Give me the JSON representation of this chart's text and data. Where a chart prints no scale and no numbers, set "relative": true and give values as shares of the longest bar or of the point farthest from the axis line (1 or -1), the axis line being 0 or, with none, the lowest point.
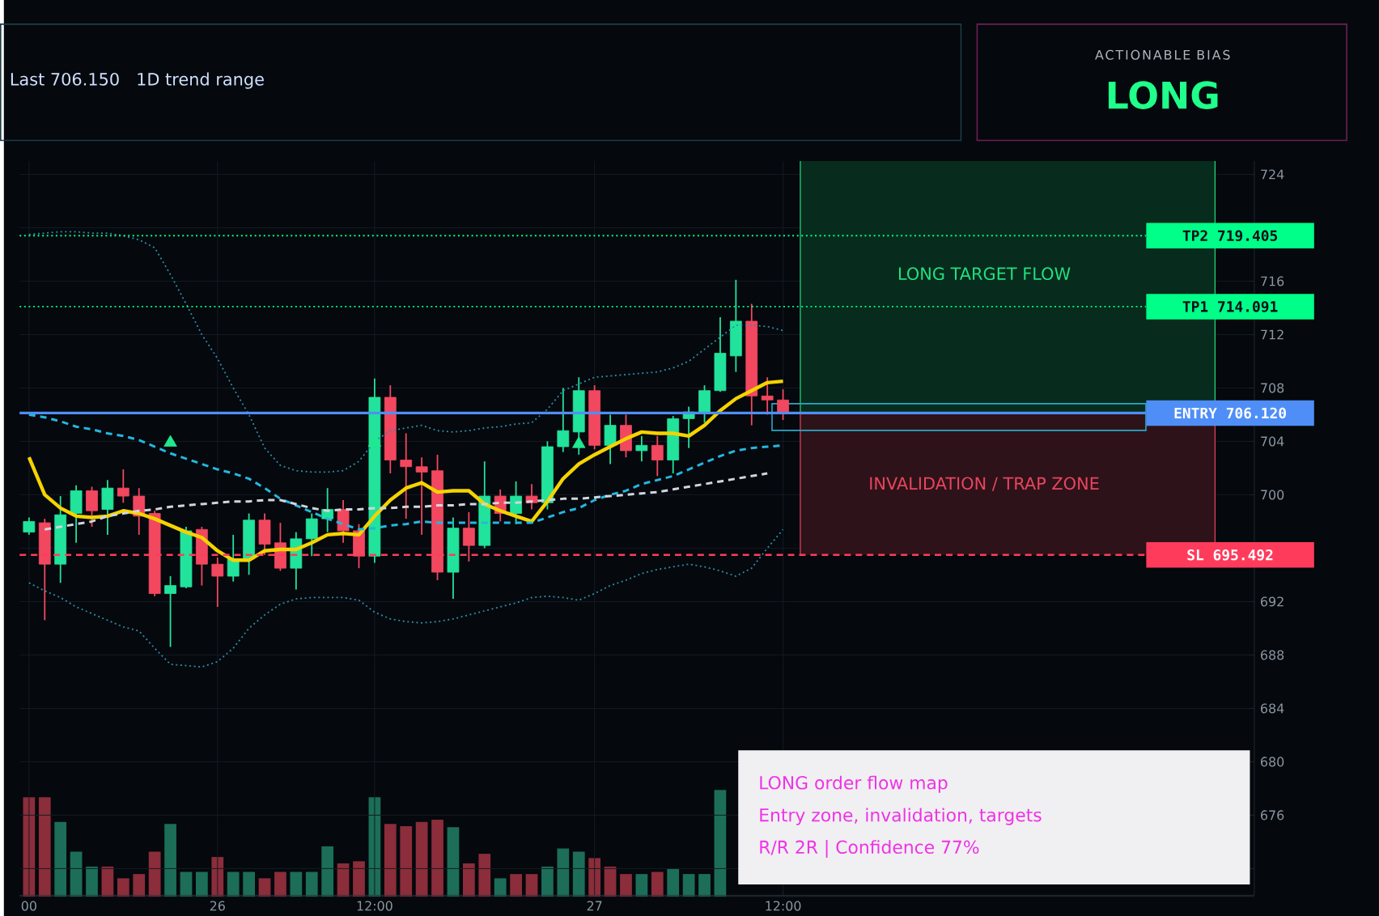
{
  "chart_data": [
    {
      "type": "candlestick",
      "title": "Last 706.150",
      "subtitle": "1D trend range",
      "categories": [
        "00",
        null,
        null,
        null,
        null,
        null,
        null,
        null,
        null,
        null,
        null,
        null,
        "26",
        null,
        null,
        null,
        null,
        null,
        null,
        null,
        null,
        null,
        "12:00",
        null,
        null,
        null,
        null,
        null,
        null,
        null,
        null,
        null,
        null,
        null,
        null,
        null,
        "27",
        null,
        null,
        null,
        null,
        null,
        null,
        null,
        null,
        null,
        null,
        null,
        "12:00"
      ],
      "ohlc": [
        [
          697.2,
          698.3,
          697.0,
          698.0
        ],
        [
          697.9,
          698.2,
          690.6,
          694.8
        ],
        [
          694.8,
          699.9,
          693.4,
          698.5
        ],
        [
          698.6,
          700.7,
          696.4,
          700.3
        ],
        [
          700.3,
          700.6,
          697.6,
          698.8
        ],
        [
          698.9,
          701.1,
          697.0,
          700.5
        ],
        [
          700.5,
          701.9,
          699.4,
          699.9
        ],
        [
          699.9,
          700.5,
          697.0,
          698.4
        ],
        [
          698.6,
          698.8,
          692.4,
          692.6
        ],
        [
          692.6,
          693.9,
          688.6,
          693.2
        ],
        [
          693.1,
          697.6,
          693.0,
          697.3
        ],
        [
          697.4,
          697.6,
          693.2,
          694.8
        ],
        [
          694.8,
          695.3,
          691.6,
          693.9
        ],
        [
          693.9,
          697.0,
          693.5,
          695.2
        ],
        [
          695.2,
          698.6,
          694.0,
          698.1
        ],
        [
          698.1,
          698.6,
          695.5,
          696.3
        ],
        [
          696.4,
          697.9,
          694.3,
          694.5
        ],
        [
          694.5,
          697.2,
          692.9,
          696.7
        ],
        [
          696.7,
          698.6,
          695.4,
          698.2
        ],
        [
          698.2,
          700.5,
          697.2,
          698.9
        ],
        [
          698.9,
          699.6,
          696.4,
          697.3
        ],
        [
          697.3,
          697.8,
          694.5,
          695.4
        ],
        [
          695.4,
          708.7,
          694.9,
          707.3
        ],
        [
          707.3,
          708.2,
          701.6,
          702.6
        ],
        [
          702.6,
          704.6,
          698.2,
          702.1
        ],
        [
          702.1,
          702.8,
          697.0,
          701.7
        ],
        [
          701.8,
          703.0,
          693.6,
          694.2
        ],
        [
          694.2,
          698.3,
          692.2,
          697.5
        ],
        [
          697.5,
          698.7,
          695.0,
          696.2
        ],
        [
          696.2,
          702.5,
          696.0,
          699.9
        ],
        [
          699.9,
          700.4,
          698.0,
          698.6
        ],
        [
          698.6,
          701.0,
          697.8,
          699.9
        ],
        [
          699.9,
          700.8,
          698.9,
          699.4
        ],
        [
          699.4,
          704.0,
          698.9,
          703.6
        ],
        [
          703.6,
          708.0,
          703.2,
          704.8
        ],
        [
          704.7,
          708.8,
          703.0,
          707.8
        ],
        [
          707.8,
          708.2,
          703.4,
          703.7
        ],
        [
          703.7,
          706.0,
          702.3,
          705.2
        ],
        [
          705.2,
          706.0,
          702.8,
          703.3
        ],
        [
          703.3,
          704.4,
          702.5,
          703.7
        ],
        [
          703.7,
          704.4,
          701.4,
          702.6
        ],
        [
          702.6,
          705.9,
          701.6,
          705.7
        ],
        [
          705.7,
          706.6,
          703.5,
          706.2
        ],
        [
          706.2,
          708.2,
          705.4,
          707.8
        ],
        [
          707.8,
          713.3,
          707.7,
          710.6
        ],
        [
          710.4,
          716.1,
          709.2,
          713.0
        ],
        [
          713.0,
          714.3,
          705.2,
          707.4
        ],
        [
          707.4,
          708.8,
          706.0,
          707.1
        ],
        [
          707.1,
          707.9,
          705.6,
          706.2
        ]
      ],
      "colors": [
        "#22e39b",
        "#f2485f",
        "#22e39b",
        "#22e39b",
        "#f2485f",
        "#22e39b",
        "#f2485f",
        "#f2485f",
        "#f2485f",
        "#22e39b",
        "#22e39b",
        "#f2485f",
        "#f2485f",
        "#22e39b",
        "#22e39b",
        "#f2485f",
        "#f2485f",
        "#22e39b",
        "#22e39b",
        "#22e39b",
        "#f2485f",
        "#f2485f",
        "#22e39b",
        "#f2485f",
        "#f2485f",
        "#f2485f",
        "#f2485f",
        "#22e39b",
        "#f2485f",
        "#22e39b",
        "#f2485f",
        "#22e39b",
        "#f2485f",
        "#22e39b",
        "#22e39b",
        "#22e39b",
        "#f2485f",
        "#22e39b",
        "#f2485f",
        "#22e39b",
        "#f2485f",
        "#22e39b",
        "#22e39b",
        "#22e39b",
        "#22e39b",
        "#22e39b",
        "#f2485f",
        "#f2485f",
        "#f2485f"
      ],
      "series": [
        {
          "type": "line",
          "color": "#f5d300",
          "line_style": "solid",
          "values": [
            702.8,
            700.0,
            699.0,
            698.4,
            698.3,
            698.4,
            698.8,
            698.6,
            698.2,
            697.7,
            697.2,
            696.8,
            695.8,
            695.1,
            695.1,
            695.8,
            695.9,
            695.9,
            696.4,
            697.0,
            697.1,
            697.0,
            698.4,
            699.6,
            700.5,
            700.9,
            700.2,
            700.3,
            700.3,
            699.3,
            698.8,
            698.4,
            698.0,
            699.5,
            701.2,
            702.3,
            703.0,
            703.6,
            704.2,
            704.7,
            704.6,
            704.6,
            704.4,
            705.2,
            706.3,
            707.2,
            707.8,
            708.4,
            708.5
          ]
        },
        {
          "type": "line",
          "color": "#22b8e0",
          "line_style": "dashed",
          "values": [
            706.0,
            705.8,
            705.5,
            705.1,
            704.9,
            704.6,
            704.4,
            704.1,
            703.6,
            703.1,
            702.7,
            702.3,
            701.9,
            701.6,
            701.2,
            700.5,
            699.7,
            699.2,
            698.7,
            698.2,
            697.8,
            697.4,
            697.5,
            697.7,
            697.8,
            698.0,
            697.9,
            697.9,
            697.9,
            697.9,
            697.9,
            697.9,
            697.9,
            698.3,
            698.7,
            699.0,
            699.6,
            700.0,
            700.3,
            700.8,
            701.1,
            701.4,
            701.9,
            702.4,
            702.9,
            703.3,
            703.5,
            703.6,
            703.7
          ]
        },
        {
          "type": "line",
          "color": "#cfd6dd",
          "line_style": "dashed",
          "values": [
            null,
            697.4,
            697.6,
            697.8,
            698.0,
            698.4,
            698.6,
            698.8,
            698.9,
            699.1,
            699.2,
            699.3,
            699.4,
            699.5,
            699.5,
            699.6,
            699.6,
            699.3,
            699.0,
            698.8,
            698.9,
            698.9,
            699.0,
            699.0,
            699.1,
            699.1,
            699.2,
            699.2,
            699.3,
            699.3,
            699.4,
            699.4,
            699.5,
            699.6,
            699.7,
            699.7,
            699.8,
            699.9,
            700.0,
            700.1,
            700.2,
            700.4,
            700.6,
            700.8,
            701.0,
            701.2,
            701.4,
            701.6,
            null
          ]
        },
        {
          "type": "line",
          "color": "#2a8fa8",
          "line_style": "dotted",
          "values": [
            719.5,
            719.6,
            719.7,
            719.7,
            719.6,
            719.6,
            719.4,
            719.1,
            718.5,
            716.5,
            714.3,
            712.0,
            710.2,
            708.0,
            706.0,
            703.5,
            702.2,
            701.8,
            701.7,
            701.7,
            701.8,
            702.5,
            704.0,
            704.8,
            705.0,
            705.2,
            704.8,
            704.7,
            704.8,
            705.0,
            705.1,
            705.3,
            705.4,
            706.4,
            707.8,
            708.3,
            708.8,
            708.9,
            709.0,
            709.1,
            709.2,
            709.5,
            710.0,
            710.9,
            711.8,
            712.7,
            712.7,
            712.6,
            712.3
          ]
        },
        {
          "type": "line",
          "color": "#2a8fa8",
          "line_style": "dotted",
          "values": [
            693.4,
            692.8,
            692.3,
            691.6,
            691.1,
            690.6,
            690.1,
            689.8,
            688.5,
            687.3,
            687.2,
            687.1,
            687.5,
            688.5,
            690.0,
            691.0,
            691.8,
            692.2,
            692.3,
            692.3,
            692.3,
            692.1,
            691.2,
            690.7,
            690.5,
            690.4,
            690.5,
            690.7,
            691.0,
            691.3,
            691.6,
            691.9,
            692.3,
            692.4,
            692.3,
            692.1,
            692.6,
            693.2,
            693.6,
            694.1,
            694.4,
            694.6,
            694.8,
            694.6,
            694.3,
            693.9,
            694.5,
            696.0,
            697.4
          ]
        },
        {
          "type": "scatter",
          "color": "#1fe88f",
          "marker": "triangle",
          "values": [
            null,
            null,
            null,
            null,
            null,
            null,
            null,
            null,
            null,
            703.9,
            null,
            null,
            null,
            null,
            null,
            null,
            null,
            null,
            null,
            null,
            null,
            null,
            703.9,
            null,
            null,
            null,
            null,
            null,
            null,
            null,
            null,
            null,
            null,
            null,
            null,
            703.8,
            null,
            null,
            null,
            null,
            null,
            null,
            null,
            null,
            null,
            null,
            null,
            null,
            null
          ]
        }
      ],
      "ylim": [
        670,
        725
      ],
      "yticks": [
        {
          "value": 672,
          "label": null
        },
        676,
        680,
        684,
        688,
        692,
        {
          "value": 696,
          "label": null
        },
        700,
        704,
        708,
        712,
        716,
        {
          "value": 720,
          "label": null
        },
        724
      ],
      "grid": true,
      "ref_lines": [
        {
          "axis": "y",
          "value": 719.405,
          "label": "TP2 719.405",
          "color": "#00ff88",
          "line_style": "dotted"
        },
        {
          "axis": "y",
          "value": 714.091,
          "label": "TP1 714.091",
          "color": "#00ff88",
          "line_style": "dotted"
        },
        {
          "axis": "y",
          "value": 706.12,
          "label": "ENTRY 706.120",
          "color": "#4f8ef7",
          "line_style": "solid"
        },
        {
          "axis": "y",
          "value": 695.492,
          "label": "SL 695.492",
          "color": "#ff3b5c",
          "line_style": "dashed"
        }
      ],
      "annotations": [
        "ACTIONABLE BIAS",
        "LONG",
        "LONG order flow map",
        "Entry zone, invalidation, targets",
        "R/R 2R | Confidence 77%",
        "LONG TARGET FLOW",
        "INVALIDATION / TRAP ZONE"
      ]
    },
    {
      "type": "bar",
      "relative": true,
      "categories": [
        null,
        null,
        null,
        null,
        null,
        null,
        null,
        null,
        null,
        null,
        null,
        null,
        null,
        null,
        null,
        null,
        null,
        null,
        null,
        null,
        null,
        null,
        null,
        null,
        null,
        null,
        null,
        null,
        null,
        null,
        null,
        null,
        null,
        null,
        null,
        null,
        null,
        null,
        null,
        null,
        null,
        null,
        null,
        null,
        null,
        null,
        null,
        null,
        null
      ],
      "values": [
        0.93,
        0.93,
        0.7,
        0.42,
        0.28,
        0.28,
        0.17,
        0.21,
        0.42,
        0.68,
        0.23,
        0.23,
        0.37,
        0.23,
        0.23,
        0.17,
        0.23,
        0.23,
        0.23,
        0.47,
        0.31,
        0.33,
        0.93,
        0.68,
        0.66,
        0.7,
        0.72,
        0.65,
        0.31,
        0.4,
        0.17,
        0.21,
        0.21,
        0.28,
        0.45,
        0.42,
        0.36,
        0.28,
        0.21,
        0.21,
        0.23,
        0.26,
        0.21,
        0.21,
        1,
        null,
        null,
        null,
        null
      ],
      "colors": [
        "#8b2d3a",
        "#8b2d3a",
        "#1c6e58",
        "#1c6e58",
        "#1c6e58",
        "#8b2d3a",
        "#8b2d3a",
        "#8b2d3a",
        "#8b2d3a",
        "#1c6e58",
        "#1c6e58",
        "#1c6e58",
        "#8b2d3a",
        "#1c6e58",
        "#1c6e58",
        "#8b2d3a",
        "#8b2d3a",
        "#1c6e58",
        "#1c6e58",
        "#1c6e58",
        "#8b2d3a",
        "#8b2d3a",
        "#1c6e58",
        "#8b2d3a",
        "#8b2d3a",
        "#8b2d3a",
        "#8b2d3a",
        "#1c6e58",
        "#8b2d3a",
        "#8b2d3a",
        "#1c6e58",
        "#8b2d3a",
        "#8b2d3a",
        "#1c6e58",
        "#1c6e58",
        "#1c6e58",
        "#8b2d3a",
        "#8b2d3a",
        "#8b2d3a",
        "#1c6e58",
        "#8b2d3a",
        "#1c6e58",
        "#1c6e58",
        "#1c6e58",
        "#1c6e58",
        null,
        null,
        null,
        null
      ]
    }
  ]
}
